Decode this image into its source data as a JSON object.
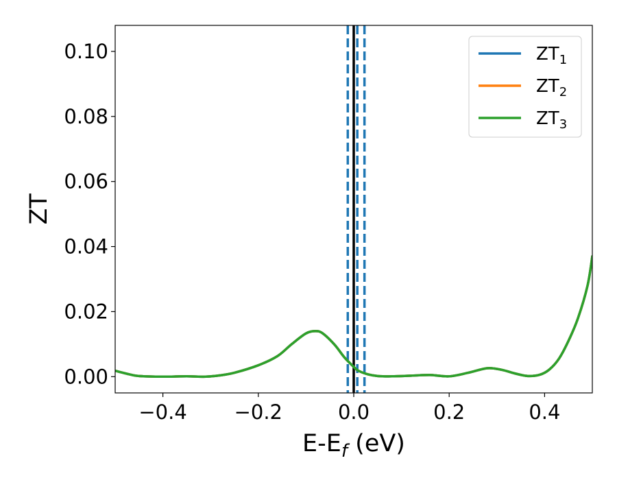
{
  "chart_data": {
    "type": "line",
    "xlabel": "E-E",
    "xlabel_sub": "f",
    "xlabel_unit": " (eV)",
    "ylabel": "ZT",
    "xlim": [
      -0.5,
      0.5
    ],
    "ylim": [
      -0.005,
      0.108
    ],
    "xticks": [
      -0.4,
      -0.2,
      0.0,
      0.2,
      0.4
    ],
    "xtick_labels": [
      "−0.4",
      "−0.2",
      "0.0",
      "0.2",
      "0.4"
    ],
    "yticks": [
      0.0,
      0.02,
      0.04,
      0.06,
      0.08,
      0.1
    ],
    "ytick_labels": [
      "0.00",
      "0.02",
      "0.04",
      "0.06",
      "0.08",
      "0.10"
    ],
    "grid": false,
    "legend_placement": "top-right",
    "series": [
      {
        "name": "ZT",
        "sub": "1",
        "color": "#1f77b4",
        "x": [
          -0.5,
          -0.47,
          -0.45,
          -0.4,
          -0.35,
          -0.31,
          -0.28,
          -0.25,
          -0.2,
          -0.16,
          -0.13,
          -0.1,
          -0.08,
          -0.065,
          -0.04,
          -0.02,
          0.0,
          0.01,
          0.03,
          0.05,
          0.08,
          0.12,
          0.16,
          0.2,
          0.24,
          0.28,
          0.31,
          0.34,
          0.365,
          0.39,
          0.41,
          0.43,
          0.45,
          0.47,
          0.49,
          0.5
        ],
        "y": [
          0.0018,
          0.0007,
          0.0002,
          0.0,
          0.0001,
          0.0,
          0.0004,
          0.0012,
          0.0035,
          0.0063,
          0.01,
          0.0133,
          0.014,
          0.0133,
          0.0098,
          0.006,
          0.003,
          0.0018,
          0.0007,
          0.0002,
          0.0001,
          0.0003,
          0.0005,
          0.0001,
          0.0012,
          0.0026,
          0.0021,
          0.0009,
          0.0002,
          0.0006,
          0.0022,
          0.0055,
          0.011,
          0.018,
          0.028,
          0.037
        ]
      },
      {
        "name": "ZT",
        "sub": "2",
        "color": "#ff7f0e",
        "x": [
          -0.5,
          -0.47,
          -0.45,
          -0.4,
          -0.35,
          -0.31,
          -0.28,
          -0.25,
          -0.2,
          -0.16,
          -0.13,
          -0.1,
          -0.08,
          -0.065,
          -0.04,
          -0.02,
          0.0,
          0.01,
          0.03,
          0.05,
          0.08,
          0.12,
          0.16,
          0.2,
          0.24,
          0.28,
          0.31,
          0.34,
          0.365,
          0.39,
          0.41,
          0.43,
          0.45,
          0.47,
          0.49,
          0.5
        ],
        "y": [
          0.0018,
          0.0007,
          0.0002,
          0.0,
          0.0001,
          0.0,
          0.0004,
          0.0012,
          0.0035,
          0.0063,
          0.01,
          0.0133,
          0.014,
          0.0133,
          0.0098,
          0.006,
          0.003,
          0.0018,
          0.0007,
          0.0002,
          0.0001,
          0.0003,
          0.0005,
          0.0001,
          0.0012,
          0.0026,
          0.0021,
          0.0009,
          0.0002,
          0.0006,
          0.0022,
          0.0055,
          0.011,
          0.018,
          0.028,
          0.037
        ]
      },
      {
        "name": "ZT",
        "sub": "3",
        "color": "#2ca02c",
        "x": [
          -0.5,
          -0.47,
          -0.45,
          -0.4,
          -0.35,
          -0.31,
          -0.28,
          -0.25,
          -0.2,
          -0.16,
          -0.13,
          -0.1,
          -0.08,
          -0.065,
          -0.04,
          -0.02,
          0.0,
          0.01,
          0.03,
          0.05,
          0.08,
          0.12,
          0.16,
          0.2,
          0.24,
          0.28,
          0.31,
          0.34,
          0.365,
          0.39,
          0.41,
          0.43,
          0.45,
          0.47,
          0.49,
          0.5
        ],
        "y": [
          0.0018,
          0.0007,
          0.0002,
          0.0,
          0.0001,
          0.0,
          0.0004,
          0.0012,
          0.0035,
          0.0063,
          0.01,
          0.0133,
          0.014,
          0.0133,
          0.0098,
          0.006,
          0.003,
          0.0018,
          0.0007,
          0.0002,
          0.0001,
          0.0003,
          0.0005,
          0.0001,
          0.0012,
          0.0026,
          0.0021,
          0.0009,
          0.0002,
          0.0006,
          0.0022,
          0.0055,
          0.011,
          0.018,
          0.028,
          0.037
        ]
      }
    ],
    "vlines": [
      {
        "x": 0.0,
        "color": "#000000",
        "style": "solid"
      },
      {
        "x": -0.0125,
        "color": "#1f77b4",
        "style": "dashed"
      },
      {
        "x": 0.0075,
        "color": "#1f77b4",
        "style": "dashed"
      },
      {
        "x": 0.0225,
        "color": "#1f77b4",
        "style": "dashed"
      }
    ]
  }
}
